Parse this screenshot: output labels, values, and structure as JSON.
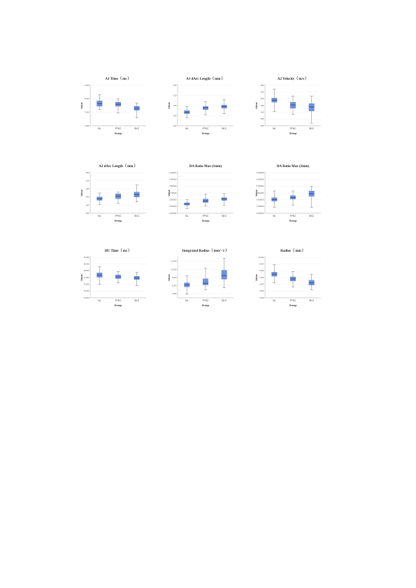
{
  "chart_data": [
    {
      "type": "boxplot",
      "title": "A1 Time（ ms ）",
      "xlabel": "Group",
      "ylabel": "Value",
      "categories": [
        "NL",
        "FFKC",
        "SKC"
      ],
      "yticks": [
        "6.000",
        "7.000",
        "8.000",
        "9.000"
      ],
      "ylim": [
        6.0,
        9.0
      ],
      "boxes": [
        {
          "min": 7.2,
          "q1": 7.45,
          "median": 7.65,
          "q3": 7.85,
          "max": 8.3
        },
        {
          "min": 6.95,
          "q1": 7.45,
          "median": 7.6,
          "q3": 7.75,
          "max": 8.0
        },
        {
          "min": 6.6,
          "q1": 7.15,
          "median": 7.3,
          "q3": 7.45,
          "max": 7.7
        }
      ]
    },
    {
      "type": "boxplot",
      "title": "A1 dArc Length（ mm ）",
      "xlabel": "Group",
      "ylabel": "Value",
      "categories": [
        "NL",
        "FFKC",
        "SKC"
      ],
      "yticks": [
        "-.400",
        "-.300",
        "-.200",
        "-.100",
        ".000"
      ],
      "ylim": [
        -0.4,
        0.0
      ],
      "boxes": [
        {
          "min": -0.32,
          "q1": -0.28,
          "median": -0.265,
          "q3": -0.25,
          "max": -0.21
        },
        {
          "min": -0.29,
          "q1": -0.24,
          "median": -0.22,
          "q3": -0.21,
          "max": -0.16
        },
        {
          "min": -0.28,
          "q1": -0.225,
          "median": -0.21,
          "q3": -0.195,
          "max": -0.14
        }
      ]
    },
    {
      "type": "boxplot",
      "title": "A2 Velocity（ m/s ）",
      "xlabel": "Group",
      "ylabel": "Value",
      "categories": [
        "NL",
        "FFKC",
        "SKC"
      ],
      "yticks": [
        "-.550",
        "-.500",
        "-.450",
        "-.400",
        "-.350",
        "-.300",
        "-.250"
      ],
      "ylim": [
        -0.55,
        -0.25
      ],
      "boxes": [
        {
          "min": -0.445,
          "q1": -0.375,
          "median": -0.36,
          "q3": -0.345,
          "max": -0.28
        },
        {
          "min": -0.465,
          "q1": -0.42,
          "median": -0.395,
          "q3": -0.375,
          "max": -0.33
        },
        {
          "min": -0.53,
          "q1": -0.44,
          "median": -0.41,
          "q3": -0.385,
          "max": -0.33
        }
      ]
    },
    {
      "type": "boxplot",
      "title": "A2 dArc Length（ mm ）",
      "xlabel": "Group",
      "ylabel": "Value",
      "categories": [
        "NL",
        "FFKC",
        "SKC"
      ],
      "yticks": [
        "-.500",
        "-.400",
        "-.300",
        "-.200",
        "-.100",
        ".000"
      ],
      "ylim": [
        -0.5,
        0.0
      ],
      "boxes": [
        {
          "min": -0.39,
          "q1": -0.34,
          "median": -0.32,
          "q3": -0.3,
          "max": -0.25
        },
        {
          "min": -0.38,
          "q1": -0.32,
          "median": -0.29,
          "q3": -0.26,
          "max": -0.24
        },
        {
          "min": -0.36,
          "q1": -0.3,
          "median": -0.27,
          "q3": -0.24,
          "max": -0.15
        }
      ]
    },
    {
      "type": "boxplot",
      "title": "DA Ratio Max (1mm)",
      "xlabel": "Group",
      "ylabel": "Value",
      "categories": [
        "NL",
        "FFKC",
        "SKC"
      ],
      "yticks": [
        "1.400000",
        "1.500000",
        "1.600000",
        "1.700000",
        "1.800000",
        "1.900000",
        "2.000000"
      ],
      "ylim": [
        1.4,
        2.0
      ],
      "boxes": [
        {
          "min": 1.47,
          "q1": 1.52,
          "median": 1.535,
          "q3": 1.555,
          "max": 1.6
        },
        {
          "min": 1.51,
          "q1": 1.56,
          "median": 1.58,
          "q3": 1.61,
          "max": 1.68
        },
        {
          "min": 1.52,
          "q1": 1.59,
          "median": 1.61,
          "q3": 1.63,
          "max": 1.69
        }
      ]
    },
    {
      "type": "boxplot",
      "title": "DA Ratio Max (2mm)",
      "xlabel": "Group",
      "ylabel": "Value",
      "categories": [
        "NL",
        "FFKC",
        "SKC"
      ],
      "yticks": [
        "3.000000",
        "3.500000",
        "4.000000",
        "4.500000",
        "5.000000",
        "5.500000",
        "6.000000"
      ],
      "ylim": [
        3.0,
        6.0
      ],
      "boxes": [
        {
          "min": 3.45,
          "q1": 3.9,
          "median": 4.0,
          "q3": 4.15,
          "max": 4.65
        },
        {
          "min": 3.6,
          "q1": 4.05,
          "median": 4.15,
          "q3": 4.3,
          "max": 4.65
        },
        {
          "min": 3.45,
          "q1": 4.25,
          "median": 4.45,
          "q3": 4.65,
          "max": 5.0
        }
      ]
    },
    {
      "type": "boxplot",
      "title": "HC Time（ ms ）",
      "xlabel": "Group",
      "ylabel": "Value",
      "categories": [
        "NL",
        "FFKC",
        "SKC"
      ],
      "yticks": [
        "14.000",
        "15.000",
        "16.000",
        "17.000",
        "18.000",
        "19.000",
        "20.000"
      ],
      "ylim": [
        14.0,
        20.0
      ],
      "boxes": [
        {
          "min": 16.0,
          "q1": 17.05,
          "median": 17.35,
          "q3": 17.7,
          "max": 18.6
        },
        {
          "min": 16.2,
          "q1": 16.85,
          "median": 17.1,
          "q3": 17.4,
          "max": 17.9
        },
        {
          "min": 15.8,
          "q1": 16.7,
          "median": 16.95,
          "q3": 17.2,
          "max": 17.8
        }
      ]
    },
    {
      "type": "boxplot",
      "title": "Integrated Radius（ mm^-1 ）",
      "xlabel": "Group",
      "ylabel": "Value",
      "categories": [
        "NL",
        "FFKC",
        "SKC"
      ],
      "yticks": [
        "4.000",
        "6.000",
        "8.000",
        "10.000",
        "12.000"
      ],
      "ylim": [
        3.0,
        13.0
      ],
      "boxes": [
        {
          "min": 3.9,
          "q1": 5.7,
          "median": 6.2,
          "q3": 6.7,
          "max": 8.5
        },
        {
          "min": 5.0,
          "q1": 6.2,
          "median": 6.6,
          "q3": 7.7,
          "max": 10.3
        },
        {
          "min": 5.5,
          "q1": 7.6,
          "median": 8.5,
          "q3": 9.8,
          "max": 12.7
        }
      ]
    },
    {
      "type": "boxplot",
      "title": "Radius（ mm ）",
      "xlabel": "Group",
      "ylabel": "Value",
      "categories": [
        "NL",
        "FFKC",
        "SKC"
      ],
      "yticks": [
        "4.000",
        "5.000",
        "6.000",
        "7.000",
        "8.000",
        "9.000",
        "10.000"
      ],
      "ylim": [
        4.0,
        10.0
      ],
      "boxes": [
        {
          "min": 6.2,
          "q1": 7.2,
          "median": 7.5,
          "q3": 7.8,
          "max": 8.9
        },
        {
          "min": 5.6,
          "q1": 6.5,
          "median": 6.8,
          "q3": 7.1,
          "max": 7.9
        },
        {
          "min": 5.2,
          "q1": 5.9,
          "median": 6.2,
          "q3": 6.6,
          "max": 7.5
        }
      ]
    }
  ],
  "colors": {
    "box_fill": "#6f93e0",
    "box_stroke": "#3e63b8",
    "median": "#1a2a55",
    "whisker": "#444444",
    "grid": "#d8d8d8"
  }
}
